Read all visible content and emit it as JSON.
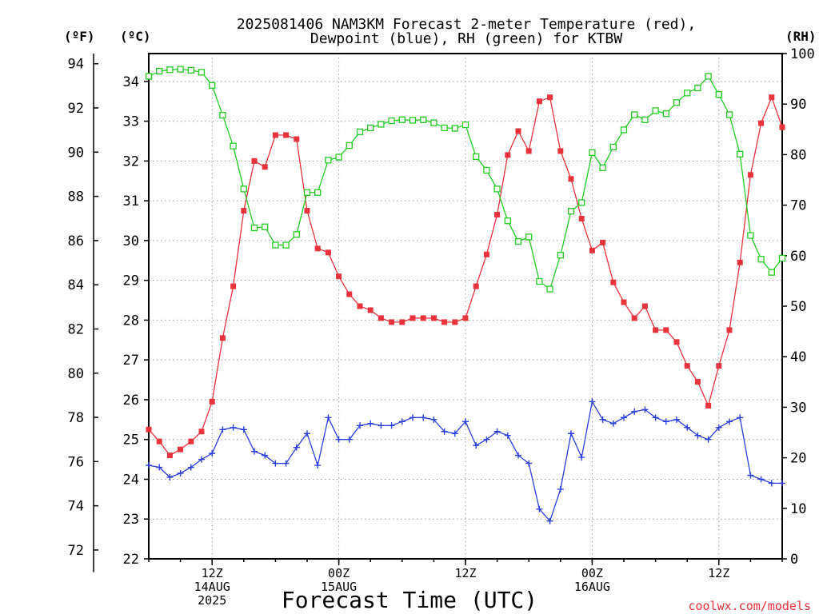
{
  "chart_data": {
    "type": "line",
    "title_line1": "2025081406 NAM3KM Forecast 2-meter Temperature (red),",
    "title_line2": "Dewpoint (blue), RH (green) for KTBW",
    "xlabel": "Forecast Time (UTC)",
    "credit": "coolwx.com/models",
    "unit_f": "(ºF)",
    "unit_c": "(ºC)",
    "unit_rh": "(RH)",
    "x_hours": [
      6,
      7,
      8,
      9,
      10,
      11,
      12,
      13,
      14,
      15,
      16,
      17,
      18,
      19,
      20,
      21,
      22,
      23,
      24,
      25,
      26,
      27,
      28,
      29,
      30,
      31,
      32,
      33,
      34,
      35,
      36,
      37,
      38,
      39,
      40,
      41,
      42,
      43,
      44,
      45,
      46,
      47,
      48,
      49,
      50,
      51,
      52,
      53,
      54,
      55,
      56,
      57,
      58,
      59,
      60,
      61,
      62,
      63,
      64,
      65,
      66
    ],
    "x_ticks": [
      {
        "hour": 12,
        "lines": [
          "12Z",
          "14AUG",
          "2025"
        ]
      },
      {
        "hour": 24,
        "lines": [
          "00Z",
          "15AUG"
        ]
      },
      {
        "hour": 36,
        "lines": [
          "12Z"
        ]
      },
      {
        "hour": 48,
        "lines": [
          "00Z",
          "16AUG"
        ]
      },
      {
        "hour": 60,
        "lines": [
          "12Z"
        ]
      }
    ],
    "xlim_hours": [
      6,
      66
    ],
    "left_f_axis": {
      "ticks": [
        "72",
        "74",
        "76",
        "78",
        "80",
        "82",
        "84",
        "86",
        "88",
        "90",
        "92",
        "94"
      ]
    },
    "left_c_axis": {
      "range": [
        22,
        34.7
      ],
      "ticks": [
        "22",
        "23",
        "24",
        "25",
        "26",
        "27",
        "28",
        "29",
        "30",
        "31",
        "32",
        "33",
        "34"
      ]
    },
    "right_rh_axis": {
      "range": [
        0,
        100
      ],
      "ticks": [
        "0",
        "10",
        "20",
        "30",
        "40",
        "50",
        "60",
        "70",
        "80",
        "90",
        "100"
      ]
    },
    "grid": true,
    "series": [
      {
        "color": "#e8323c",
        "axis": "c",
        "marker": "filled-square",
        "values": [
          25.25,
          24.95,
          24.6,
          24.75,
          24.95,
          25.2,
          25.95,
          27.55,
          28.85,
          30.75,
          32.0,
          31.85,
          32.65,
          32.65,
          32.55,
          30.75,
          29.8,
          29.7,
          29.1,
          28.65,
          28.35,
          28.25,
          28.05,
          27.95,
          27.95,
          28.05,
          28.05,
          28.05,
          27.95,
          27.95,
          28.05,
          28.85,
          29.65,
          30.65,
          32.15,
          32.75,
          32.25,
          33.5,
          33.6,
          32.25,
          31.55,
          30.55,
          29.75,
          29.95,
          28.95,
          28.45,
          28.05,
          28.35,
          27.75,
          27.75,
          27.45,
          26.85,
          26.45,
          25.85,
          26.85,
          27.75,
          29.45,
          31.65,
          32.95,
          33.6,
          32.85
        ]
      },
      {
        "color": "#2b3fe0",
        "axis": "c",
        "marker": "plus",
        "values": [
          24.35,
          24.3,
          24.05,
          24.15,
          24.3,
          24.5,
          24.65,
          25.25,
          25.3,
          25.25,
          24.7,
          24.6,
          24.4,
          24.4,
          24.8,
          25.15,
          24.35,
          25.55,
          25.0,
          25.0,
          25.35,
          25.4,
          25.35,
          25.35,
          25.45,
          25.55,
          25.55,
          25.5,
          25.2,
          25.15,
          25.45,
          24.85,
          25.0,
          25.2,
          25.1,
          24.6,
          24.4,
          23.25,
          22.95,
          23.75,
          25.15,
          24.55,
          25.95,
          25.5,
          25.4,
          25.55,
          25.7,
          25.75,
          25.55,
          25.45,
          25.5,
          25.3,
          25.1,
          25.0,
          25.3,
          25.45,
          25.55,
          24.1,
          24.0,
          23.9,
          23.9
        ]
      },
      {
        "color": "#22cc22",
        "axis": "rh",
        "marker": "open-square",
        "values": [
          95.5,
          96.5,
          96.8,
          96.9,
          96.7,
          96.3,
          93.7,
          87.8,
          81.7,
          73.2,
          65.5,
          65.7,
          62.1,
          62.1,
          64.2,
          72.5,
          72.5,
          78.9,
          79.5,
          81.8,
          84.5,
          85.3,
          86.0,
          86.7,
          86.9,
          86.8,
          86.9,
          86.3,
          85.3,
          85.2,
          85.9,
          79.6,
          76.9,
          73.2,
          66.9,
          62.8,
          63.7,
          54.9,
          53.4,
          60.1,
          68.8,
          70.5,
          80.4,
          77.4,
          81.5,
          84.9,
          87.9,
          86.9,
          88.7,
          88.1,
          90.3,
          92.2,
          93.2,
          95.5,
          91.9,
          87.9,
          80.1,
          64.0,
          59.3,
          56.7,
          59.5
        ]
      }
    ]
  }
}
